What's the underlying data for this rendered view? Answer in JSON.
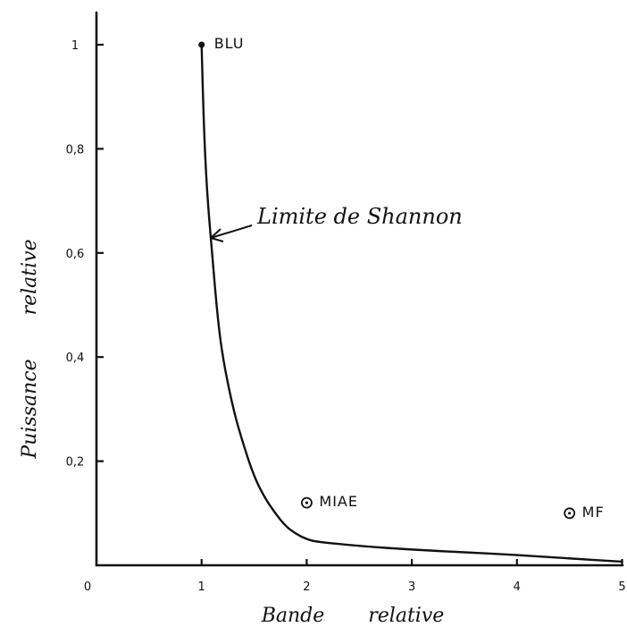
{
  "chart_data": {
    "type": "line",
    "title": "",
    "xlabel": "Bande relative",
    "ylabel": "Puissance relative",
    "xlim": [
      0,
      5
    ],
    "ylim": [
      0,
      1.05
    ],
    "x_ticks": [
      {
        "value": 0,
        "label": "0"
      },
      {
        "value": 1,
        "label": "1"
      },
      {
        "value": 2,
        "label": "2"
      },
      {
        "value": 3,
        "label": "3"
      },
      {
        "value": 4,
        "label": "4"
      },
      {
        "value": 5,
        "label": "5"
      }
    ],
    "y_ticks": [
      {
        "value": 0.2,
        "label": "0,2"
      },
      {
        "value": 0.4,
        "label": "0,4"
      },
      {
        "value": 0.6,
        "label": "0,6"
      },
      {
        "value": 0.8,
        "label": "0,8"
      },
      {
        "value": 1.0,
        "label": "1"
      }
    ],
    "grid": false,
    "series": [
      {
        "x": [
          1.0,
          1.02,
          1.05,
          1.1,
          1.15,
          1.2,
          1.3,
          1.4,
          1.5,
          1.6,
          1.7,
          1.8,
          1.9,
          2.0,
          2.1,
          2.5,
          3.0,
          3.5,
          4.0,
          4.5,
          5.0
        ],
        "y": [
          1.0,
          0.85,
          0.72,
          0.6,
          0.48,
          0.4,
          0.3,
          0.23,
          0.17,
          0.13,
          0.1,
          0.075,
          0.06,
          0.05,
          0.045,
          0.037,
          0.03,
          0.025,
          0.02,
          0.013,
          0.007
        ]
      }
    ],
    "points": [
      {
        "label": "BLU",
        "x": 1.0,
        "y": 1.0,
        "marker": "dot"
      },
      {
        "label": "MIAE",
        "x": 2.0,
        "y": 0.12,
        "marker": "circle-dot"
      },
      {
        "label": "MF",
        "x": 4.5,
        "y": 0.1,
        "marker": "circle-dot"
      }
    ],
    "annotations": [
      {
        "text": "Limite de Shannon",
        "x": 1.08,
        "y": 0.64
      }
    ]
  }
}
